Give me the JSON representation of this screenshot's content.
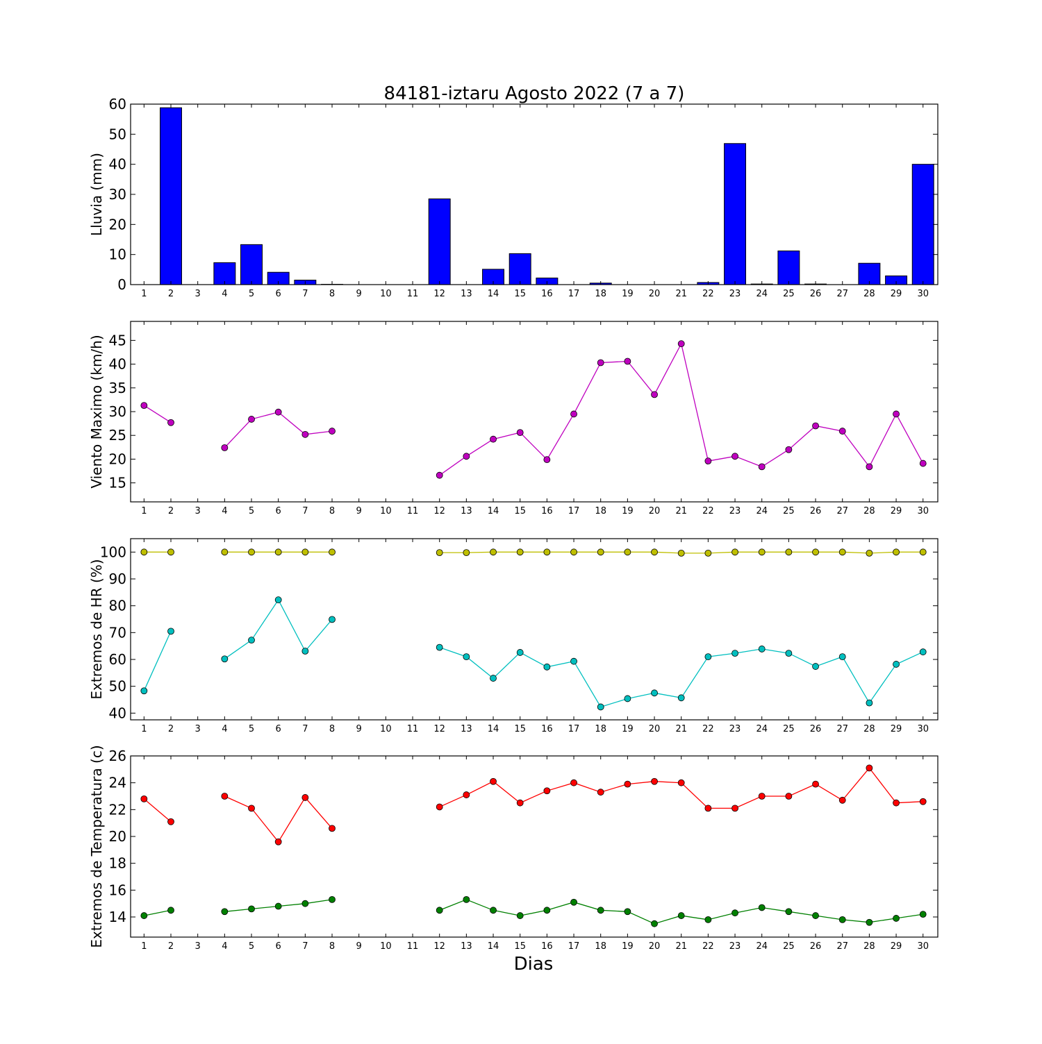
{
  "chart_data": [
    {
      "type": "bar",
      "title": "84181-iztaru Agosto 2022  (7 a 7)",
      "ylabel": "Lluvia (mm)",
      "xlabel": "",
      "ylim": [
        0,
        60
      ],
      "yticks": [
        0,
        10,
        20,
        30,
        40,
        50,
        60
      ],
      "grid": false,
      "categories": [
        "1",
        "2",
        "3",
        "4",
        "5",
        "6",
        "7",
        "8",
        "9",
        "10",
        "11",
        "12",
        "13",
        "14",
        "15",
        "16",
        "17",
        "18",
        "19",
        "20",
        "21",
        "22",
        "23",
        "24",
        "25",
        "26",
        "27",
        "28",
        "29",
        "30"
      ],
      "series": [
        {
          "color": "#0000ff",
          "values": [
            0,
            58.8,
            0,
            7.3,
            13.3,
            4.1,
            1.5,
            0.1,
            0,
            0,
            0,
            28.5,
            0,
            5.1,
            10.3,
            2.2,
            0,
            0.5,
            0,
            0,
            0,
            0.7,
            46.9,
            0.2,
            11.2,
            0.2,
            0,
            7.1,
            2.9,
            40
          ]
        }
      ]
    },
    {
      "type": "line",
      "title": "",
      "ylabel": "Viento Maximo (km/h)",
      "xlabel": "",
      "ylim": [
        11,
        49
      ],
      "yticks": [
        15,
        20,
        25,
        30,
        35,
        40,
        45
      ],
      "grid": false,
      "categories": [
        "1",
        "2",
        "3",
        "4",
        "5",
        "6",
        "7",
        "8",
        "9",
        "10",
        "11",
        "12",
        "13",
        "14",
        "15",
        "16",
        "17",
        "18",
        "19",
        "20",
        "21",
        "22",
        "23",
        "24",
        "25",
        "26",
        "27",
        "28",
        "29",
        "30"
      ],
      "series": [
        {
          "color": "#bf00bf",
          "values": [
            31.3,
            27.7,
            null,
            22.4,
            28.4,
            29.9,
            25.2,
            25.9,
            null,
            null,
            null,
            16.6,
            20.6,
            24.2,
            25.6,
            19.9,
            29.5,
            40.3,
            40.6,
            33.6,
            44.3,
            19.6,
            20.6,
            18.4,
            22.0,
            27.0,
            25.9,
            18.4,
            29.5,
            19.1
          ]
        }
      ]
    },
    {
      "type": "line",
      "title": "",
      "ylabel": "Extremos de HR (%)",
      "xlabel": "",
      "ylim": [
        37.5,
        105
      ],
      "yticks": [
        40,
        50,
        60,
        70,
        80,
        90,
        100
      ],
      "grid": false,
      "categories": [
        "1",
        "2",
        "3",
        "4",
        "5",
        "6",
        "7",
        "8",
        "9",
        "10",
        "11",
        "12",
        "13",
        "14",
        "15",
        "16",
        "17",
        "18",
        "19",
        "20",
        "21",
        "22",
        "23",
        "24",
        "25",
        "26",
        "27",
        "28",
        "29",
        "30"
      ],
      "series": [
        {
          "color": "#bfbf00",
          "values": [
            100,
            100,
            null,
            100,
            100,
            100,
            100,
            100,
            null,
            null,
            null,
            99.8,
            99.8,
            100,
            100,
            100,
            100,
            100,
            100,
            100,
            99.6,
            99.6,
            100,
            100,
            100,
            100,
            100,
            99.6,
            100,
            100
          ]
        },
        {
          "color": "#00bfbf",
          "values": [
            48.3,
            70.5,
            null,
            60.2,
            67.2,
            82.2,
            63.1,
            74.9,
            null,
            null,
            null,
            64.5,
            61.0,
            53.0,
            62.6,
            57.2,
            59.3,
            42.3,
            45.4,
            47.5,
            45.7,
            61.0,
            62.3,
            63.9,
            62.3,
            57.4,
            61.0,
            43.8,
            58.2,
            62.8
          ]
        }
      ]
    },
    {
      "type": "line",
      "title": "",
      "ylabel": "Extremos de Temperatura (c)",
      "xlabel": "Dias",
      "ylim": [
        12.5,
        26
      ],
      "yticks": [
        14,
        16,
        18,
        20,
        22,
        24,
        26
      ],
      "grid": false,
      "categories": [
        "1",
        "2",
        "3",
        "4",
        "5",
        "6",
        "7",
        "8",
        "9",
        "10",
        "11",
        "12",
        "13",
        "14",
        "15",
        "16",
        "17",
        "18",
        "19",
        "20",
        "21",
        "22",
        "23",
        "24",
        "25",
        "26",
        "27",
        "28",
        "29",
        "30"
      ],
      "series": [
        {
          "color": "#ff0000",
          "values": [
            22.8,
            21.1,
            null,
            23.0,
            22.1,
            19.6,
            22.9,
            20.6,
            null,
            null,
            null,
            22.2,
            23.1,
            24.1,
            22.5,
            23.4,
            24.0,
            23.3,
            23.9,
            24.1,
            24.0,
            22.1,
            22.1,
            23.0,
            23.0,
            23.9,
            22.7,
            25.1,
            22.5,
            22.6
          ]
        },
        {
          "color": "#008000",
          "values": [
            14.1,
            14.5,
            null,
            14.4,
            14.6,
            14.8,
            15.0,
            15.3,
            null,
            null,
            null,
            14.5,
            15.3,
            14.5,
            14.1,
            14.5,
            15.1,
            14.5,
            14.4,
            13.5,
            14.1,
            13.8,
            14.3,
            14.7,
            14.4,
            14.1,
            13.8,
            13.6,
            13.9,
            14.2
          ]
        }
      ]
    }
  ]
}
